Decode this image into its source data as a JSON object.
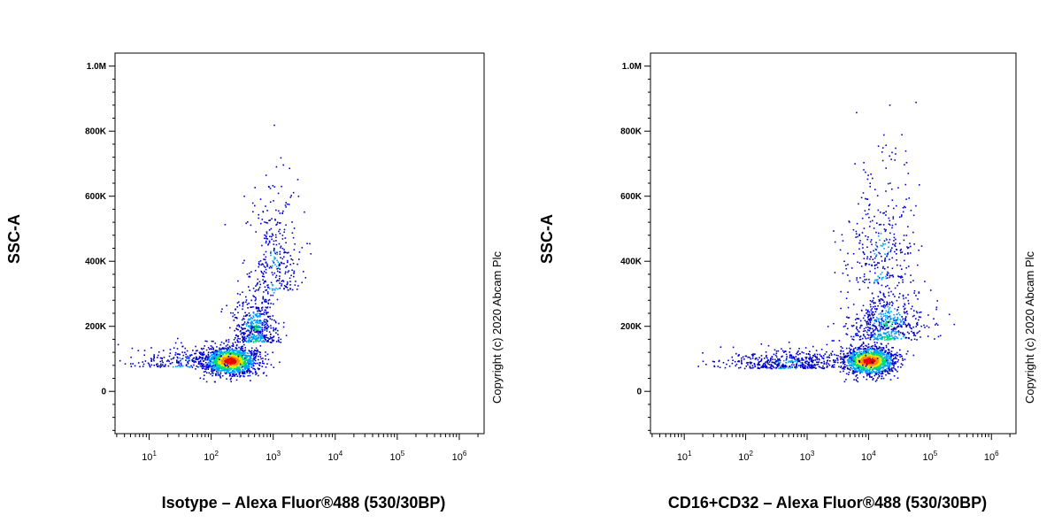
{
  "chart_data": [
    {
      "type": "scatter",
      "ylabel": "SSC-A",
      "xlabel": "Isotype – Alexa Fluor®488 (530/30BP)",
      "copyright": "Copyright (c) 2020 Abcam Plc",
      "x_scale": "log",
      "xlim_log10": [
        0.45,
        6.4
      ],
      "ylim": [
        -130000,
        1040000
      ],
      "y_ticks": [
        0,
        200000,
        400000,
        600000,
        800000,
        1000000
      ],
      "y_tick_labels": [
        "0",
        "200K",
        "400K",
        "600K",
        "800K",
        "1.0M"
      ],
      "x_ticks_log10": [
        1,
        2,
        3,
        4,
        5,
        6
      ],
      "x_tick_labels": [
        "10",
        "10",
        "10",
        "10",
        "10",
        "10"
      ],
      "x_tick_exponents": [
        "1",
        "2",
        "3",
        "4",
        "5",
        "6"
      ],
      "series": [
        {
          "clusters": [
            {
              "x_log10_center": 2.3,
              "y_center": 95000,
              "x_log10_spread": 0.22,
              "y_spread": 22000,
              "count": 1400
            },
            {
              "x_log10_center": 2.7,
              "y_center": 190000,
              "x_log10_spread": 0.18,
              "y_spread": 60000,
              "count": 500
            },
            {
              "x_log10_center": 3.0,
              "y_center": 380000,
              "x_log10_spread": 0.22,
              "y_spread": 160000,
              "count": 300
            },
            {
              "x_log10_center": 1.5,
              "y_center": 95000,
              "x_log10_spread": 0.45,
              "y_spread": 25000,
              "count": 220
            }
          ]
        }
      ],
      "colors": [
        "#0000cc",
        "#00a0ff",
        "#00dc78",
        "#e6e600",
        "#ff8c00",
        "#e60000"
      ]
    },
    {
      "type": "scatter",
      "ylabel": "SSC-A",
      "xlabel": "CD16+CD32 – Alexa Fluor®488 (530/30BP)",
      "copyright": "Copyright (c) 2020 Abcam Plc",
      "x_scale": "log",
      "xlim_log10": [
        0.45,
        6.4
      ],
      "ylim": [
        -130000,
        1040000
      ],
      "y_ticks": [
        0,
        200000,
        400000,
        600000,
        800000,
        1000000
      ],
      "y_tick_labels": [
        "0",
        "200K",
        "400K",
        "600K",
        "800K",
        "1.0M"
      ],
      "x_ticks_log10": [
        1,
        2,
        3,
        4,
        5,
        6
      ],
      "x_tick_labels": [
        "10",
        "10",
        "10",
        "10",
        "10",
        "10"
      ],
      "x_tick_exponents": [
        "1",
        "2",
        "3",
        "4",
        "5",
        "6"
      ],
      "series": [
        {
          "clusters": [
            {
              "x_log10_center": 4.0,
              "y_center": 95000,
              "x_log10_spread": 0.22,
              "y_spread": 22000,
              "count": 1300
            },
            {
              "x_log10_center": 4.3,
              "y_center": 200000,
              "x_log10_spread": 0.3,
              "y_spread": 70000,
              "count": 600
            },
            {
              "x_log10_center": 4.2,
              "y_center": 420000,
              "x_log10_spread": 0.3,
              "y_spread": 170000,
              "count": 300
            },
            {
              "x_log10_center": 2.7,
              "y_center": 90000,
              "x_log10_spread": 0.55,
              "y_spread": 22000,
              "count": 500
            }
          ]
        }
      ],
      "colors": [
        "#0000cc",
        "#00a0ff",
        "#00dc78",
        "#e6e600",
        "#ff8c00",
        "#e60000"
      ]
    }
  ]
}
